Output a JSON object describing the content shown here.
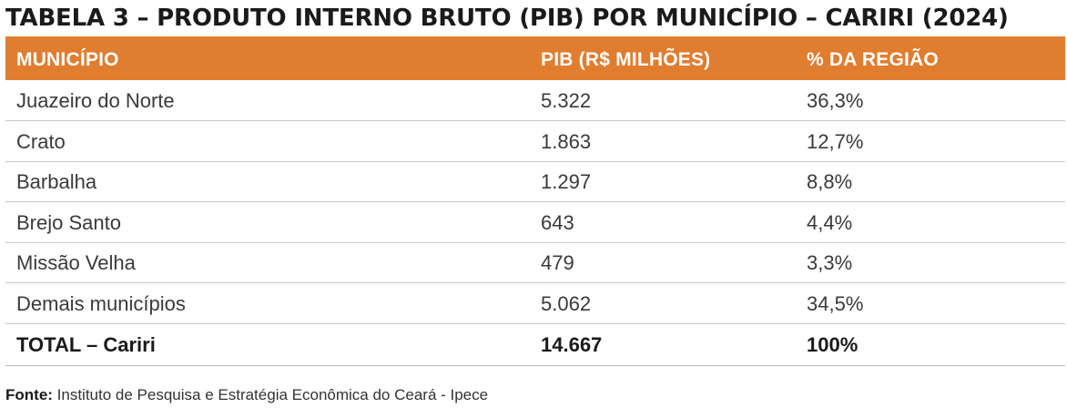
{
  "title": "TABELA 3 – PRODUTO INTERNO BRUTO (PIB) POR MUNICÍPIO – CARIRI (2024)",
  "colors": {
    "header_bg": "#e07d2f",
    "header_text": "#ffffff",
    "row_divider": "#c9c9c9"
  },
  "table": {
    "headers": [
      "MUNICÍPIO",
      "PIB (R$ MILHÕES)",
      "% DA REGIÃO"
    ],
    "rows": [
      [
        "Juazeiro do Norte",
        "5.322",
        "36,3%"
      ],
      [
        "Crato",
        "1.863",
        "12,7%"
      ],
      [
        "Barbalha",
        "1.297",
        "8,8%"
      ],
      [
        "Brejo Santo",
        "643",
        "4,4%"
      ],
      [
        "Missão Velha",
        "479",
        "3,3%"
      ],
      [
        "Demais municípios",
        "5.062",
        "34,5%"
      ]
    ],
    "total": [
      "TOTAL – Cariri",
      "14.667",
      "100%"
    ]
  },
  "source": {
    "label": "Fonte:",
    "text": " Instituto de Pesquisa e Estratégia Econômica do Ceará - Ipece"
  }
}
